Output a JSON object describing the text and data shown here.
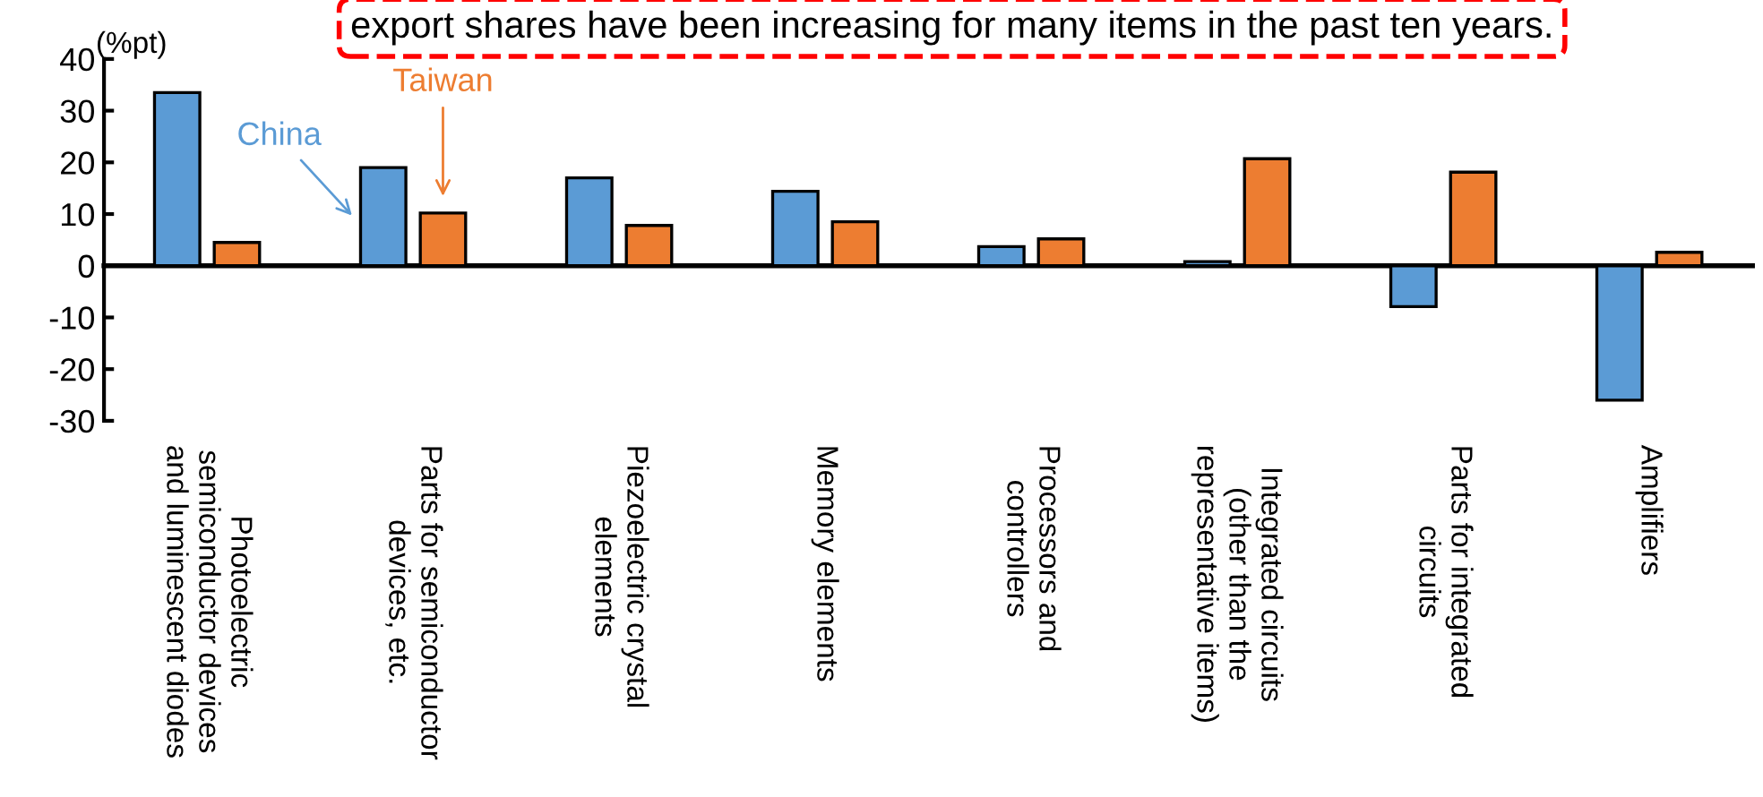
{
  "chart_data": {
    "type": "bar",
    "ylabel": "(%pt)",
    "ylim": [
      -30,
      40
    ],
    "yticks": [
      -30,
      -20,
      -10,
      0,
      10,
      20,
      30,
      40
    ],
    "categories": [
      "Photoelectric\nsemiconductor devices\nand luminescent diodes",
      "Parts for semiconductor\ndevices, etc.",
      "Piezoelectric crystal\nelements",
      "Memory elements",
      "Processors and\ncontrollers",
      "Integrated circuits\n(other than the\nrepresentative items)",
      "Parts for integrated\ncircuits",
      "Amplifiers"
    ],
    "series": [
      {
        "name": "China",
        "color": "#5b9bd5",
        "values": [
          33.5,
          19,
          17,
          14.4,
          3.7,
          0.8,
          -7.9,
          -26
        ]
      },
      {
        "name": "Taiwan",
        "color": "#ed7d31",
        "values": [
          4.5,
          10.2,
          7.8,
          8.5,
          5.2,
          20.7,
          18.1,
          2.6
        ]
      }
    ],
    "annotations": [
      "export shares have been increasing for many items in the past ten years."
    ]
  }
}
